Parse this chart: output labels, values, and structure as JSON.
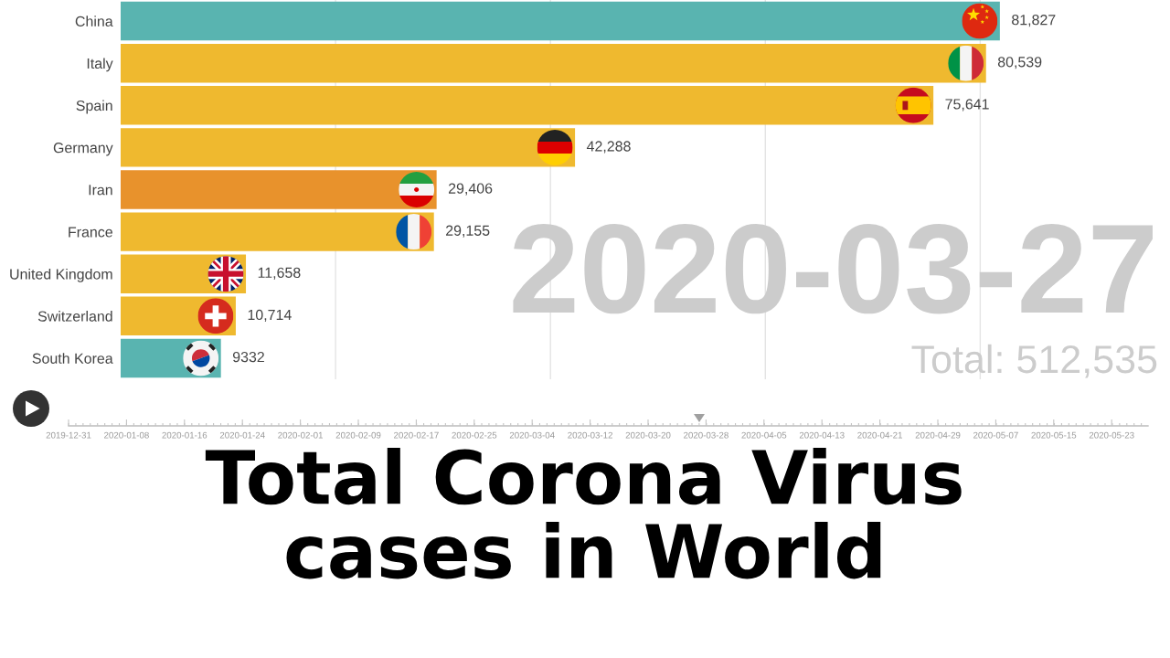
{
  "chart_data": {
    "type": "bar",
    "orientation": "horizontal",
    "title": "Total Corona Virus\ncases in World",
    "categories": [
      "China",
      "Italy",
      "Spain",
      "Germany",
      "Iran",
      "France",
      "United Kingdom",
      "Switzerland",
      "South Korea"
    ],
    "values": [
      81827,
      80539,
      75641,
      42288,
      29406,
      29155,
      11658,
      10714,
      9332
    ],
    "colors": [
      "#59b4b0",
      "#efb92f",
      "#efb92f",
      "#efb92f",
      "#e8922c",
      "#efb92f",
      "#efb92f",
      "#efb92f",
      "#59b4b0"
    ],
    "value_labels": [
      "81,827",
      "80,539",
      "75,641",
      "42,288",
      "29,406",
      "29,155",
      "11,658",
      "10,714",
      "9332"
    ],
    "xticks": [
      {
        "value": 20000,
        "label": null
      },
      {
        "value": 40000,
        "label": null
      },
      {
        "value": 60000,
        "label": null
      },
      {
        "value": 80000,
        "label": null
      }
    ],
    "grid": "x",
    "tick_labels": "y",
    "annotations": [
      "2020-03-27",
      "Total: 512,535",
      "2019-12-31",
      "2020-01-08",
      "2020-01-16",
      "2020-01-24",
      "2020-02-01",
      "2020-02-09",
      "2020-02-17",
      "2020-02-25",
      "2020-03-04",
      "2020-03-12",
      "2020-03-20",
      "2020-03-28",
      "2020-04-05",
      "2020-04-13",
      "2020-04-21",
      "2020-04-29",
      "2020-05-07",
      "2020-05-15",
      "2020-05-23"
    ]
  }
}
